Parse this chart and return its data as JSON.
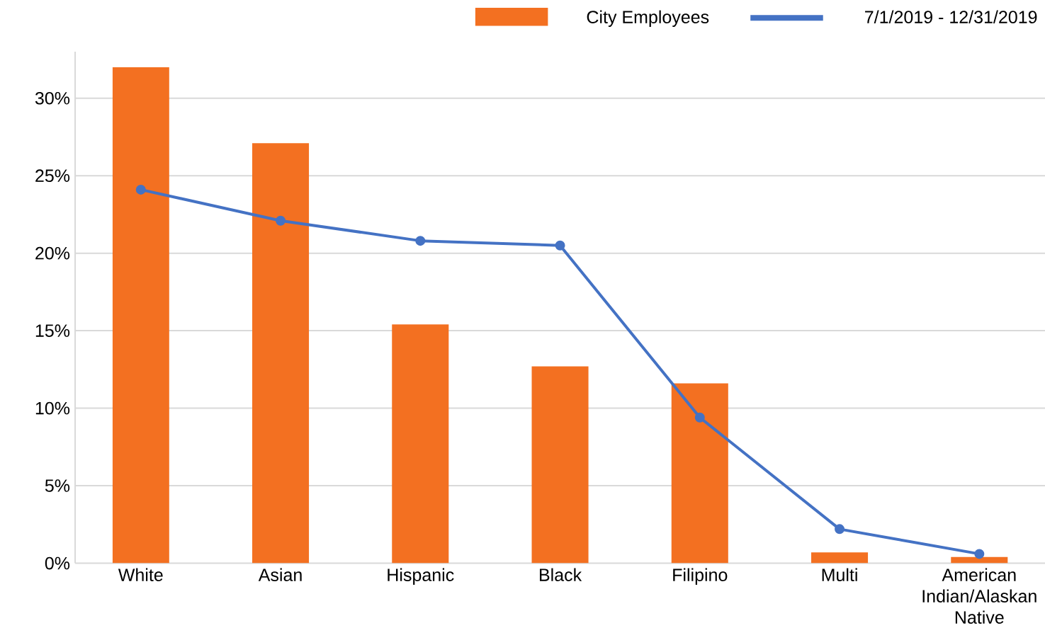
{
  "chart_data": {
    "type": "bar",
    "categories": [
      "White",
      "Asian",
      "Hispanic",
      "Black",
      "Filipino",
      "Multi",
      "American Indian/Alaskan Native"
    ],
    "series": [
      {
        "name": "City Employees",
        "color": "#f37021",
        "values": [
          32,
          27.1,
          15.4,
          12.7,
          11.6,
          0.7,
          0.4
        ]
      },
      {
        "name": "7/1/2019 - 12/31/2019",
        "type": "line",
        "color": "#4472c4",
        "marker": "circle",
        "values": [
          24.1,
          22.1,
          20.8,
          20.5,
          9.4,
          2.2,
          0.6
        ]
      }
    ],
    "ylim": [
      0,
      33
    ],
    "yticks": [
      {
        "value": 0,
        "label": "0%"
      },
      {
        "value": 5,
        "label": "5%"
      },
      {
        "value": 10,
        "label": "10%"
      },
      {
        "value": 15,
        "label": "15%"
      },
      {
        "value": 20,
        "label": "20%"
      },
      {
        "value": 25,
        "label": "25%"
      },
      {
        "value": 30,
        "label": "30%"
      }
    ],
    "grid": "y",
    "legend": "top right"
  }
}
